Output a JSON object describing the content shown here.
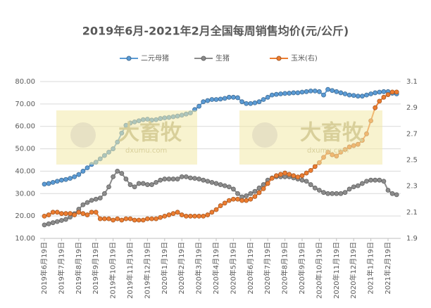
{
  "chart_data": {
    "type": "line",
    "title": "2019年6月-2021年2月全国每周销售均价(元/公斤)",
    "categories": [
      "2019年6月19日",
      null,
      null,
      null,
      "2019年7月19日",
      null,
      null,
      null,
      "2019年8月19日",
      null,
      null,
      null,
      "2019年9月19日",
      null,
      null,
      null,
      "2019年10月19日",
      null,
      null,
      null,
      "2019年11月19日",
      null,
      null,
      null,
      "2019年12月19日",
      null,
      null,
      null,
      "2020年1月19日",
      null,
      null,
      null,
      "2020年2月19日",
      null,
      null,
      null,
      "2020年3月19日",
      null,
      null,
      null,
      "2020年4月19日",
      null,
      null,
      null,
      "2020年5月19日",
      null,
      null,
      null,
      "2020年6月19日",
      null,
      null,
      null,
      "2020年7月19日",
      null,
      null,
      null,
      "2020年8月19日",
      null,
      null,
      null,
      "2020年9月19日",
      null,
      null,
      null,
      "2020年10月19日",
      null,
      null,
      null,
      "2020年11月19日",
      null,
      null,
      null,
      "2020年12月19日",
      null,
      null,
      null,
      "2021年1月19日",
      null,
      null,
      null,
      "2021年2月19日",
      null,
      null
    ],
    "series": [
      {
        "name": "二元母猪",
        "color": "#5b9bd5",
        "values": [
          34.2,
          34.5,
          35,
          35.5,
          36,
          36.3,
          36.8,
          37.5,
          38.5,
          40,
          41.5,
          43,
          44,
          45.5,
          47,
          48.5,
          50,
          53,
          57,
          60.5,
          61.5,
          62,
          62.5,
          63,
          63.2,
          62.8,
          63,
          63.5,
          63.8,
          64,
          64.3,
          64.6,
          65,
          65.5,
          66,
          67.5,
          69,
          71,
          71.5,
          72,
          72,
          72.2,
          72.5,
          73,
          73,
          72.8,
          71,
          70.2,
          70.2,
          70.5,
          71,
          72,
          73,
          74,
          74.3,
          74.5,
          74.7,
          74.8,
          75,
          75,
          75.3,
          75.5,
          75.8,
          75.8,
          75.5,
          74,
          76.5,
          76,
          75.5,
          75,
          74.5,
          74,
          73.8,
          73.5,
          73.5,
          74,
          74.5,
          75,
          75.3,
          75.5,
          75.5,
          74.8,
          74.5
        ]
      },
      {
        "name": "生猪",
        "color": "#8c8c8c",
        "values": [
          16,
          16.5,
          17,
          17.5,
          18,
          18.5,
          19.5,
          21,
          23,
          25,
          26,
          27,
          27.5,
          28,
          30,
          33,
          37.5,
          40,
          39,
          36.5,
          34,
          33,
          34.5,
          34.5,
          34,
          34,
          35,
          36,
          36.5,
          36.5,
          36.5,
          36.5,
          37.5,
          37.5,
          37,
          36.8,
          36.5,
          36,
          35.5,
          35,
          34.5,
          34,
          33.5,
          33,
          32,
          30,
          28.5,
          29,
          30,
          31,
          32.5,
          34,
          36,
          37,
          37.5,
          37.5,
          37.5,
          37.5,
          37,
          36.5,
          36,
          35.5,
          34,
          32.5,
          31.5,
          30.5,
          30,
          30,
          30,
          30,
          30.5,
          32,
          33,
          33.5,
          34.5,
          35.5,
          36,
          36,
          36,
          35.5,
          31.5,
          30,
          29.5
        ]
      },
      {
        "name": "玉米(右)",
        "color": "#ed7d31",
        "axis": "y2",
        "values": [
          2.07,
          2.08,
          2.1,
          2.1,
          2.09,
          2.09,
          2.09,
          2.08,
          2.1,
          2.09,
          2.08,
          2.1,
          2.1,
          2.05,
          2.05,
          2.05,
          2.04,
          2.05,
          2.04,
          2.05,
          2.05,
          2.04,
          2.04,
          2.04,
          2.05,
          2.05,
          2.05,
          2.06,
          2.07,
          2.08,
          2.09,
          2.1,
          2.08,
          2.07,
          2.07,
          2.07,
          2.07,
          2.07,
          2.08,
          2.1,
          2.12,
          2.15,
          2.17,
          2.19,
          2.2,
          2.2,
          2.19,
          2.19,
          2.2,
          2.22,
          2.25,
          2.28,
          2.32,
          2.36,
          2.38,
          2.39,
          2.4,
          2.39,
          2.38,
          2.37,
          2.38,
          2.4,
          2.42,
          2.45,
          2.48,
          2.52,
          2.56,
          2.54,
          2.53,
          2.56,
          2.58,
          2.6,
          2.61,
          2.62,
          2.65,
          2.7,
          2.8,
          2.9,
          2.95,
          2.98,
          3.0,
          3.02,
          3.02
        ]
      }
    ],
    "ylim": [
      10,
      80
    ],
    "yticks": [
      {
        "value": 10,
        "label": "10.00"
      },
      {
        "value": 20,
        "label": "20.00"
      },
      {
        "value": 30,
        "label": "30.00"
      },
      {
        "value": 40,
        "label": "40.00"
      },
      {
        "value": 50,
        "label": "50.00"
      },
      {
        "value": 60,
        "label": "60.00"
      },
      {
        "value": 70,
        "label": "70.00"
      },
      {
        "value": 80,
        "label": "80.00"
      }
    ],
    "y2lim": [
      1.9,
      3.1
    ],
    "y2ticks": [
      1.9,
      2.1,
      2.3,
      2.5,
      2.7,
      2.9,
      3.1
    ],
    "grid": true,
    "legend": "top",
    "watermark": "大畜牧",
    "watermark_url": "dxumu.com"
  }
}
